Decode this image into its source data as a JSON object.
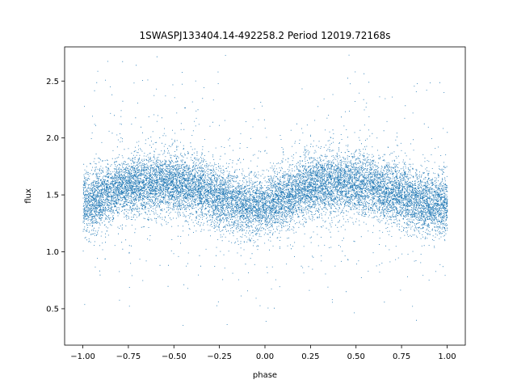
{
  "chart_data": {
    "type": "scatter",
    "title": "1SWASPJ133404.14-492258.2 Period 12019.72168s",
    "xlabel": "phase",
    "ylabel": "flux",
    "xlim": [
      -1.1,
      1.1
    ],
    "ylim": [
      0.18,
      2.8
    ],
    "xticks": [
      -1.0,
      -0.75,
      -0.5,
      -0.25,
      0.0,
      0.25,
      0.5,
      0.75,
      1.0
    ],
    "xtick_labels": [
      "−1.00",
      "−0.75",
      "−0.50",
      "−0.25",
      "0.00",
      "0.25",
      "0.50",
      "0.75",
      "1.00"
    ],
    "yticks": [
      0.5,
      1.0,
      1.5,
      2.0,
      2.5
    ],
    "ytick_labels": [
      "0.5",
      "1.0",
      "1.5",
      "2.0",
      "2.5"
    ],
    "grid": false,
    "legend": "none",
    "marker_color": "#1f77b4",
    "series": [
      {
        "x": [
          -1.0,
          -0.95,
          -0.9,
          -0.85,
          -0.8,
          -0.75,
          -0.7,
          -0.65,
          -0.6,
          -0.55,
          -0.5,
          -0.45,
          -0.4,
          -0.35,
          -0.3,
          -0.25,
          -0.2,
          -0.15,
          -0.1,
          -0.05,
          0.0,
          0.05,
          0.1,
          0.15,
          0.2,
          0.25,
          0.3,
          0.35,
          0.4,
          0.45,
          0.5,
          0.55,
          0.6,
          0.65,
          0.7,
          0.75,
          0.8,
          0.85,
          0.9,
          0.95,
          1.0
        ],
        "y": [
          1.42,
          1.45,
          1.49,
          1.53,
          1.56,
          1.58,
          1.6,
          1.6,
          1.61,
          1.61,
          1.6,
          1.59,
          1.57,
          1.55,
          1.52,
          1.49,
          1.46,
          1.43,
          1.41,
          1.4,
          1.41,
          1.44,
          1.48,
          1.52,
          1.55,
          1.58,
          1.59,
          1.6,
          1.61,
          1.6,
          1.6,
          1.58,
          1.57,
          1.55,
          1.52,
          1.5,
          1.47,
          1.44,
          1.42,
          1.41,
          1.42
        ],
        "spread": 0.13,
        "points": 16000
      }
    ]
  }
}
